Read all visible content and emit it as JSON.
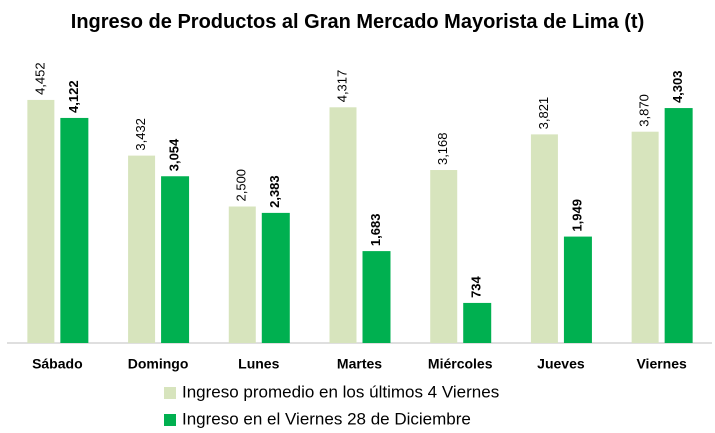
{
  "chart_data": {
    "type": "bar",
    "title": "Ingreso de Productos al Gran Mercado Mayorista de Lima (t)",
    "categories": [
      "Sábado",
      "Domingo",
      "Lunes",
      "Martes",
      "Miércoles",
      "Jueves",
      "Viernes"
    ],
    "series": [
      {
        "name": "Ingreso promedio en los últimos 4 Viernes",
        "color": "#d7e4bd",
        "values": [
          4452,
          3432,
          2500,
          4317,
          3168,
          3821,
          3870
        ],
        "value_labels": [
          "4,452",
          "3,432",
          "2,500",
          "4,317",
          "3,168",
          "3,821",
          "3,870"
        ]
      },
      {
        "name": "Ingreso en el Viernes 28 de Diciembre",
        "color": "#00b050",
        "values": [
          4122,
          3054,
          2383,
          1683,
          734,
          1949,
          4303
        ],
        "value_labels": [
          "4,122",
          "3,054",
          "2,383",
          "1,683",
          "734",
          "1,949",
          "4,303"
        ]
      }
    ],
    "ylim": [
      0,
      5000
    ],
    "legend": "bottom"
  }
}
